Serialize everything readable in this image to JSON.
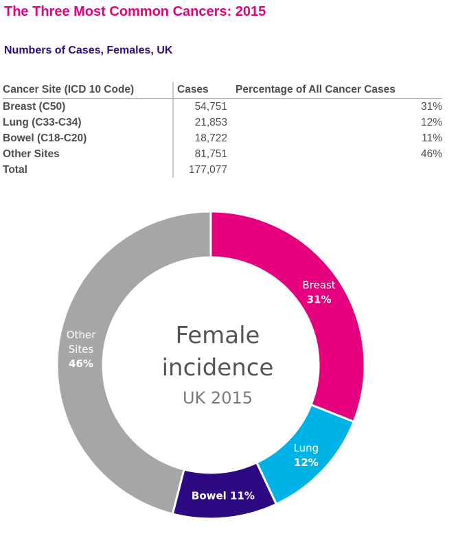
{
  "title": "The Three Most Common Cancers: 2015",
  "subtitle": "Numbers of Cases, Females, UK",
  "table": {
    "headers": [
      "Cancer Site (ICD 10 Code)",
      "Cases",
      "Percentage of All Cancer Cases"
    ],
    "rows": [
      {
        "site": "Breast (C50)",
        "cases": "54,751",
        "pct": "31%"
      },
      {
        "site": "Lung (C33-C34)",
        "cases": "21,853",
        "pct": "12%"
      },
      {
        "site": "Bowel (C18-C20)",
        "cases": "18,722",
        "pct": "11%"
      },
      {
        "site": "Other Sites",
        "cases": "81,751",
        "pct": "46%"
      },
      {
        "site": "Total",
        "cases": "177,077",
        "pct": ""
      }
    ]
  },
  "chart_data": {
    "type": "pie",
    "style": "donut",
    "center_text": [
      "Female",
      "incidence",
      "UK 2015"
    ],
    "slices": [
      {
        "label": "Breast",
        "value": 31,
        "value_label": "31%",
        "color": "#e6007e",
        "label_color": "#ffffff"
      },
      {
        "label": "Lung",
        "value": 12,
        "value_label": "12%",
        "color": "#00b3e6",
        "label_color": "#ffffff"
      },
      {
        "label": "Bowel",
        "value": 11,
        "value_label": "11%",
        "color": "#2e0a82",
        "label_color": "#ffffff"
      },
      {
        "label": "Other Sites",
        "value": 46,
        "value_label": "46%",
        "color": "#a6a6a8",
        "label_color": "#ffffff"
      }
    ]
  }
}
